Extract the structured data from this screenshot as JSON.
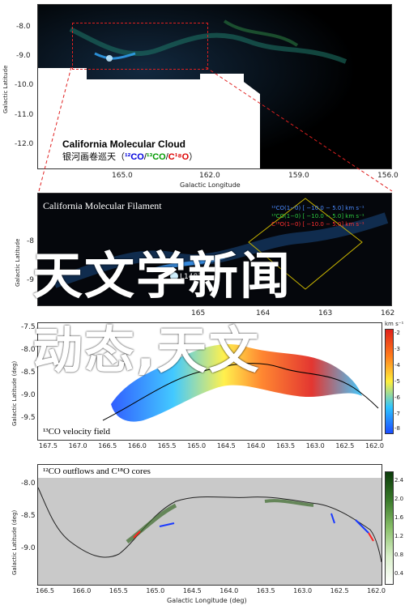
{
  "overlay": {
    "line1": "天文学新闻",
    "line2": "动态,天文"
  },
  "panel1": {
    "title": "California Molecular Cloud",
    "subtitle_zh": "银河画卷巡天（",
    "subtitle_12co": "¹²CO",
    "subtitle_sep1": "/",
    "subtitle_13co": "¹³CO",
    "subtitle_sep2": "/",
    "subtitle_c18o": "C¹⁸O",
    "subtitle_close": "）",
    "xlabel": "Galactic Longitude",
    "ylabel": "Galactic Latitude",
    "xticks": [
      "165.0",
      "162.0",
      "159.0",
      "156.0"
    ],
    "yticks": [
      "-8.0",
      "-9.0",
      "-10.0",
      "-11.0",
      "-12.0"
    ]
  },
  "panel2": {
    "title": "California Molecular Filament",
    "ylabel": "Galactic Latitude",
    "legend_12co": "¹²CO(1−0) [ −10.0 − 5.0] km s⁻¹",
    "legend_13co": "¹³CO(1−0) [ −10.0 − 5.0] km s⁻¹",
    "legend_c18o": "C¹⁸O(1−0) [ −10.0 − 5.0] km s⁻¹",
    "label_l1482": "L1482",
    "yticks": [
      "-8",
      "-9"
    ],
    "xticks": [
      "165",
      "164",
      "163",
      "162"
    ],
    "colors": {
      "co12": "#4040ff",
      "co13": "#2ecc40",
      "c18o": "#ff3030"
    }
  },
  "panel3": {
    "title": "¹³CO velocity field",
    "ylabel": "Galactic Latitude (deg)",
    "cb_unit": "km s⁻¹",
    "cb_ticks": [
      "-2",
      "-3",
      "-4",
      "-5",
      "-6",
      "-7",
      "-8"
    ],
    "xticks": [
      "167.5",
      "167.0",
      "166.5",
      "166.0",
      "165.5",
      "165.0",
      "164.5",
      "164.0",
      "163.5",
      "163.0",
      "162.5",
      "162.0"
    ],
    "yticks": [
      "-7.5",
      "-8.0",
      "-8.5",
      "-9.0",
      "-9.5"
    ]
  },
  "panel4": {
    "title": "¹²CO outflows and C¹⁸O cores",
    "xlabel": "Galactic Longitude (deg)",
    "ylabel": "Galactic Latitude (deg)",
    "cb_ticks": [
      "2.4",
      "2.0",
      "1.6",
      "1.2",
      "0.8",
      "0.4"
    ],
    "xticks": [
      "166.5",
      "166.0",
      "165.5",
      "165.0",
      "164.5",
      "164.0",
      "163.5",
      "163.0",
      "162.5",
      "162.0"
    ],
    "yticks": [
      "-8.0",
      "-8.5",
      "-9.0"
    ]
  }
}
